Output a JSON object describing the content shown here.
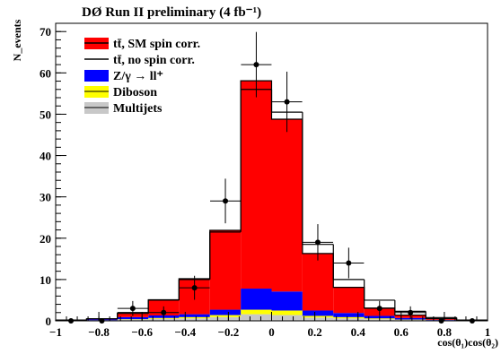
{
  "chart_data": {
    "type": "bar",
    "title": "DØ Run II preliminary (4 fb⁻¹)",
    "xlabel": "cos(θ₁)cos(θ₂)",
    "ylabel": "N_events",
    "xlim": [
      -1,
      1
    ],
    "ylim": [
      0,
      72
    ],
    "x_ticks": [
      "−1",
      "−0.8",
      "−0.6",
      "−0.4",
      "−0.2",
      "0",
      "0.2",
      "0.4",
      "0.6",
      "0.8",
      "1"
    ],
    "y_ticks": [
      "0",
      "10",
      "20",
      "30",
      "40",
      "50",
      "60",
      "70"
    ],
    "bin_edges": [
      -1.0,
      -0.857,
      -0.714,
      -0.571,
      -0.429,
      -0.286,
      -0.143,
      0.0,
      0.143,
      0.286,
      0.429,
      0.571,
      0.714,
      0.857,
      1.0
    ],
    "stack": [
      {
        "name": "Multijets",
        "color": "#c8c8c8",
        "values": [
          0.0,
          0.1,
          0.3,
          0.5,
          0.6,
          0.9,
          1.6,
          1.4,
          0.8,
          0.6,
          0.4,
          0.2,
          0.1,
          0.0
        ]
      },
      {
        "name": "Diboson",
        "color": "#ffff00",
        "values": [
          0.0,
          0.05,
          0.1,
          0.2,
          0.3,
          0.5,
          1.1,
          1.1,
          0.4,
          0.3,
          0.2,
          0.1,
          0.05,
          0.0
        ]
      },
      {
        "name": "Z/γ → ll⁺",
        "color": "#0000ff",
        "values": [
          0.0,
          0.2,
          0.5,
          0.6,
          0.7,
          1.3,
          5.1,
          4.6,
          1.3,
          1.0,
          0.6,
          0.4,
          0.1,
          0.0
        ]
      },
      {
        "name": "tt̄, SM spin corr.",
        "color": "#ff0000",
        "values": [
          0.1,
          0.15,
          0.9,
          3.8,
          8.6,
          19.2,
          50.3,
          41.7,
          13.8,
          6.2,
          1.9,
          0.7,
          0.3,
          0.1
        ]
      }
    ],
    "no_spin_total": {
      "name": "tt̄, no spin corr.",
      "values": [
        0.2,
        0.5,
        2.0,
        5.0,
        10.0,
        21.5,
        56.0,
        50.5,
        18.5,
        10.0,
        5.0,
        2.3,
        0.8,
        0.2
      ]
    },
    "data_points": {
      "x": [
        -0.929,
        -0.786,
        -0.643,
        -0.5,
        -0.357,
        -0.214,
        -0.071,
        0.071,
        0.214,
        0.357,
        0.5,
        0.643,
        0.786,
        0.929
      ],
      "y": [
        0,
        0,
        3,
        2,
        8,
        29,
        62,
        53,
        19,
        14,
        3,
        2,
        0,
        0
      ],
      "err": [
        0,
        0,
        1.8,
        1.5,
        2.9,
        5.4,
        7.9,
        7.3,
        4.4,
        3.7,
        1.8,
        1.5,
        0,
        0
      ]
    },
    "legend": [
      {
        "label": "tt̄, SM spin corr.",
        "style": "fill-line",
        "fill": "#ff0000",
        "line": "#000000"
      },
      {
        "label": "tt̄, no spin corr.",
        "style": "line",
        "line": "#000000"
      },
      {
        "label": "Z/γ → ll⁺",
        "style": "fill",
        "fill": "#0000ff"
      },
      {
        "label": "Diboson",
        "style": "fill",
        "fill": "#ffff00"
      },
      {
        "label": "Multijets",
        "style": "fill",
        "fill": "#c8c8c8"
      }
    ],
    "legend_position": "top-left"
  }
}
